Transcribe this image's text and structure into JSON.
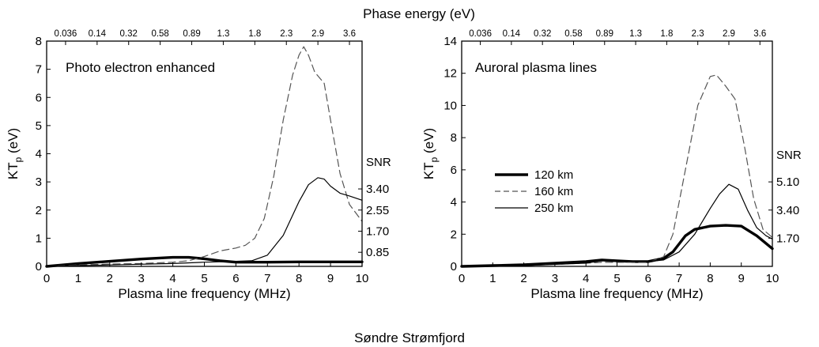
{
  "figure": {
    "top_axis_title": "Phase energy (eV)",
    "bottom_caption": "Søndre Strømfjord"
  },
  "chart_data": [
    {
      "type": "line",
      "title": "Photo electron enhanced",
      "xlabel": "Plasma line frequency (MHz)",
      "ylabel": "KTp (eV)",
      "ylabel_main": "KT",
      "ylabel_sub": "p",
      "ylabel_unit": " (eV)",
      "xlim": [
        0,
        10
      ],
      "ylim": [
        0,
        8
      ],
      "x_ticks": [
        0,
        1,
        2,
        3,
        4,
        5,
        6,
        7,
        8,
        9,
        10
      ],
      "y_ticks": [
        0,
        1,
        2,
        3,
        4,
        5,
        6,
        7,
        8
      ],
      "top_ticks": [
        {
          "label": "0.036",
          "x": 0.6
        },
        {
          "label": "0.14",
          "x": 1.6
        },
        {
          "label": "0.32",
          "x": 2.6
        },
        {
          "label": "0.58",
          "x": 3.6
        },
        {
          "label": "0.89",
          "x": 4.6
        },
        {
          "label": "1.3",
          "x": 5.6
        },
        {
          "label": "1.8",
          "x": 6.6
        },
        {
          "label": "2.3",
          "x": 7.6
        },
        {
          "label": "2.9",
          "x": 8.6
        },
        {
          "label": "3.6",
          "x": 9.6
        }
      ],
      "right_axis": {
        "title": "SNR",
        "ticks": [
          {
            "label": "0.85",
            "y": 0.5
          },
          {
            "label": "1.70",
            "y": 1.25
          },
          {
            "label": "2.55",
            "y": 2.0
          },
          {
            "label": "3.40",
            "y": 2.75
          }
        ]
      },
      "series": [
        {
          "style": "thick",
          "color": "#000000",
          "x": [
            0,
            1,
            2,
            3,
            4,
            4.5,
            5,
            5.5,
            6,
            7,
            8,
            9,
            10
          ],
          "y": [
            0,
            0.1,
            0.18,
            0.26,
            0.32,
            0.32,
            0.27,
            0.2,
            0.15,
            0.15,
            0.16,
            0.16,
            0.16
          ]
        },
        {
          "style": "dashed",
          "color": "#555555",
          "x": [
            0,
            1,
            2,
            3,
            4,
            4.5,
            5,
            5.5,
            6,
            6.3,
            6.6,
            6.9,
            7.2,
            7.5,
            7.8,
            8.0,
            8.15,
            8.3,
            8.5,
            8.8,
            9.0,
            9.3,
            9.6,
            10
          ],
          "y": [
            0,
            0.05,
            0.08,
            0.1,
            0.15,
            0.2,
            0.35,
            0.55,
            0.65,
            0.75,
            1.0,
            1.7,
            3.2,
            5.2,
            6.8,
            7.5,
            7.8,
            7.5,
            6.9,
            6.5,
            5.2,
            3.3,
            2.2,
            1.6
          ]
        },
        {
          "style": "thin",
          "color": "#000000",
          "x": [
            0,
            2,
            4,
            5,
            6,
            6.5,
            7,
            7.5,
            8,
            8.3,
            8.6,
            8.8,
            9.0,
            9.3,
            9.6,
            10
          ],
          "y": [
            0,
            0.05,
            0.1,
            0.15,
            0.18,
            0.2,
            0.4,
            1.1,
            2.3,
            2.9,
            3.15,
            3.1,
            2.85,
            2.6,
            2.5,
            2.35
          ]
        }
      ]
    },
    {
      "type": "line",
      "title": "Auroral plasma lines",
      "xlabel": "Plasma line frequency (MHz)",
      "ylabel": "KTp (eV)",
      "ylabel_main": "KT",
      "ylabel_sub": "p",
      "ylabel_unit": " (eV)",
      "xlim": [
        0,
        10
      ],
      "ylim": [
        0,
        14
      ],
      "x_ticks": [
        0,
        1,
        2,
        3,
        4,
        5,
        6,
        7,
        8,
        9,
        10
      ],
      "y_ticks": [
        0,
        2,
        4,
        6,
        8,
        10,
        12,
        14
      ],
      "top_ticks": [
        {
          "label": "0.036",
          "x": 0.6
        },
        {
          "label": "0.14",
          "x": 1.6
        },
        {
          "label": "0.32",
          "x": 2.6
        },
        {
          "label": "0.58",
          "x": 3.6
        },
        {
          "label": "0.89",
          "x": 4.6
        },
        {
          "label": "1.3",
          "x": 5.6
        },
        {
          "label": "1.8",
          "x": 6.6
        },
        {
          "label": "2.3",
          "x": 7.6
        },
        {
          "label": "2.9",
          "x": 8.6
        },
        {
          "label": "3.6",
          "x": 9.6
        }
      ],
      "right_axis": {
        "title": "SNR",
        "ticks": [
          {
            "label": "1.70",
            "y": 1.75
          },
          {
            "label": "3.40",
            "y": 3.5
          },
          {
            "label": "5.10",
            "y": 5.25
          }
        ]
      },
      "legend_position": "middle-left",
      "series": [
        {
          "name": "120 km",
          "style": "thick",
          "color": "#000000",
          "x": [
            0,
            1,
            2,
            3,
            4,
            4.5,
            5,
            5.5,
            6,
            6.5,
            6.8,
            7.0,
            7.2,
            7.5,
            8,
            8.5,
            9,
            9.5,
            10
          ],
          "y": [
            0,
            0.05,
            0.1,
            0.2,
            0.3,
            0.4,
            0.35,
            0.3,
            0.3,
            0.5,
            0.9,
            1.4,
            1.9,
            2.3,
            2.5,
            2.55,
            2.5,
            1.9,
            1.1
          ]
        },
        {
          "name": "160 km",
          "style": "dashed",
          "color": "#555555",
          "x": [
            0,
            2,
            4,
            4.5,
            5,
            6,
            6.5,
            6.8,
            7.0,
            7.3,
            7.6,
            8.0,
            8.2,
            8.5,
            8.8,
            9.1,
            9.4,
            9.7,
            10
          ],
          "y": [
            0,
            0.05,
            0.2,
            0.25,
            0.25,
            0.25,
            0.6,
            2.0,
            4.0,
            7.0,
            10.0,
            11.8,
            11.9,
            11.2,
            10.4,
            7.5,
            4.2,
            2.3,
            1.8
          ]
        },
        {
          "name": "250 km",
          "style": "thin",
          "color": "#000000",
          "x": [
            0,
            2,
            4,
            4.5,
            5,
            6,
            6.5,
            7.0,
            7.5,
            8.0,
            8.3,
            8.6,
            8.9,
            9.2,
            9.5,
            9.8,
            10
          ],
          "y": [
            0,
            0.05,
            0.2,
            0.35,
            0.3,
            0.3,
            0.4,
            0.9,
            2.0,
            3.6,
            4.5,
            5.1,
            4.8,
            3.5,
            2.4,
            1.9,
            1.7
          ]
        }
      ]
    }
  ]
}
